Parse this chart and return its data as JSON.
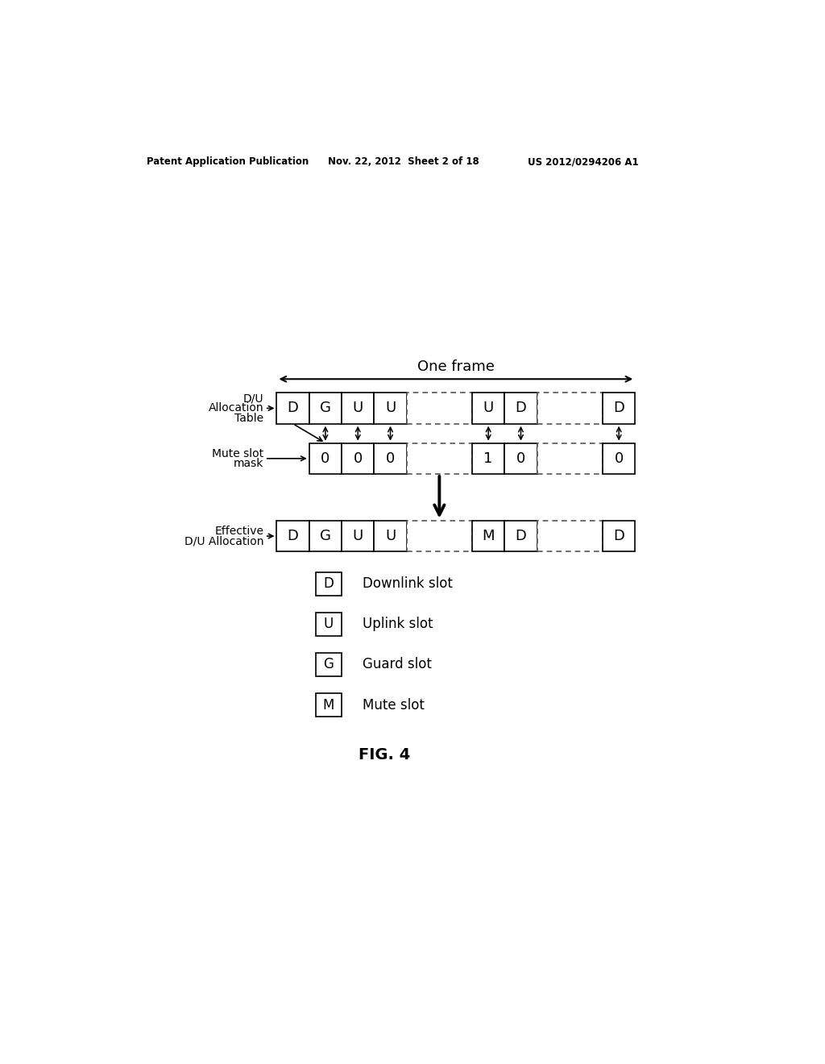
{
  "header_left": "Patent Application Publication",
  "header_mid": "Nov. 22, 2012  Sheet 2 of 18",
  "header_right": "US 2012/0294206 A1",
  "fig_label": "FIG. 4",
  "one_frame_label": "One frame",
  "row1_label_lines": [
    "D/U",
    "Allocation",
    "Table"
  ],
  "row2_label_lines": [
    "Mute slot",
    "mask"
  ],
  "row3_label_lines": [
    "Effective",
    "D/U Allocation"
  ],
  "g1_cells_row1": [
    "D",
    "G",
    "U",
    "U"
  ],
  "g2_cells_row1": [
    "U",
    "D"
  ],
  "g3_cells_row1": [
    "D"
  ],
  "g1_cells_mask": [
    "0",
    "0",
    "0"
  ],
  "g2_cells_mask": [
    "1",
    "0"
  ],
  "g3_cells_mask": [
    "0"
  ],
  "g1_cells_row3": [
    "D",
    "G",
    "U",
    "U"
  ],
  "g2_cells_row3": [
    "M",
    "D"
  ],
  "g3_cells_row3": [
    "D"
  ],
  "legend_items": [
    {
      "label": "D",
      "desc": "Downlink slot"
    },
    {
      "label": "U",
      "desc": "Uplink slot"
    },
    {
      "label": "G",
      "desc": "Guard slot"
    },
    {
      "label": "M",
      "desc": "Mute slot"
    }
  ],
  "bg_color": "#ffffff",
  "text_color": "#000000"
}
